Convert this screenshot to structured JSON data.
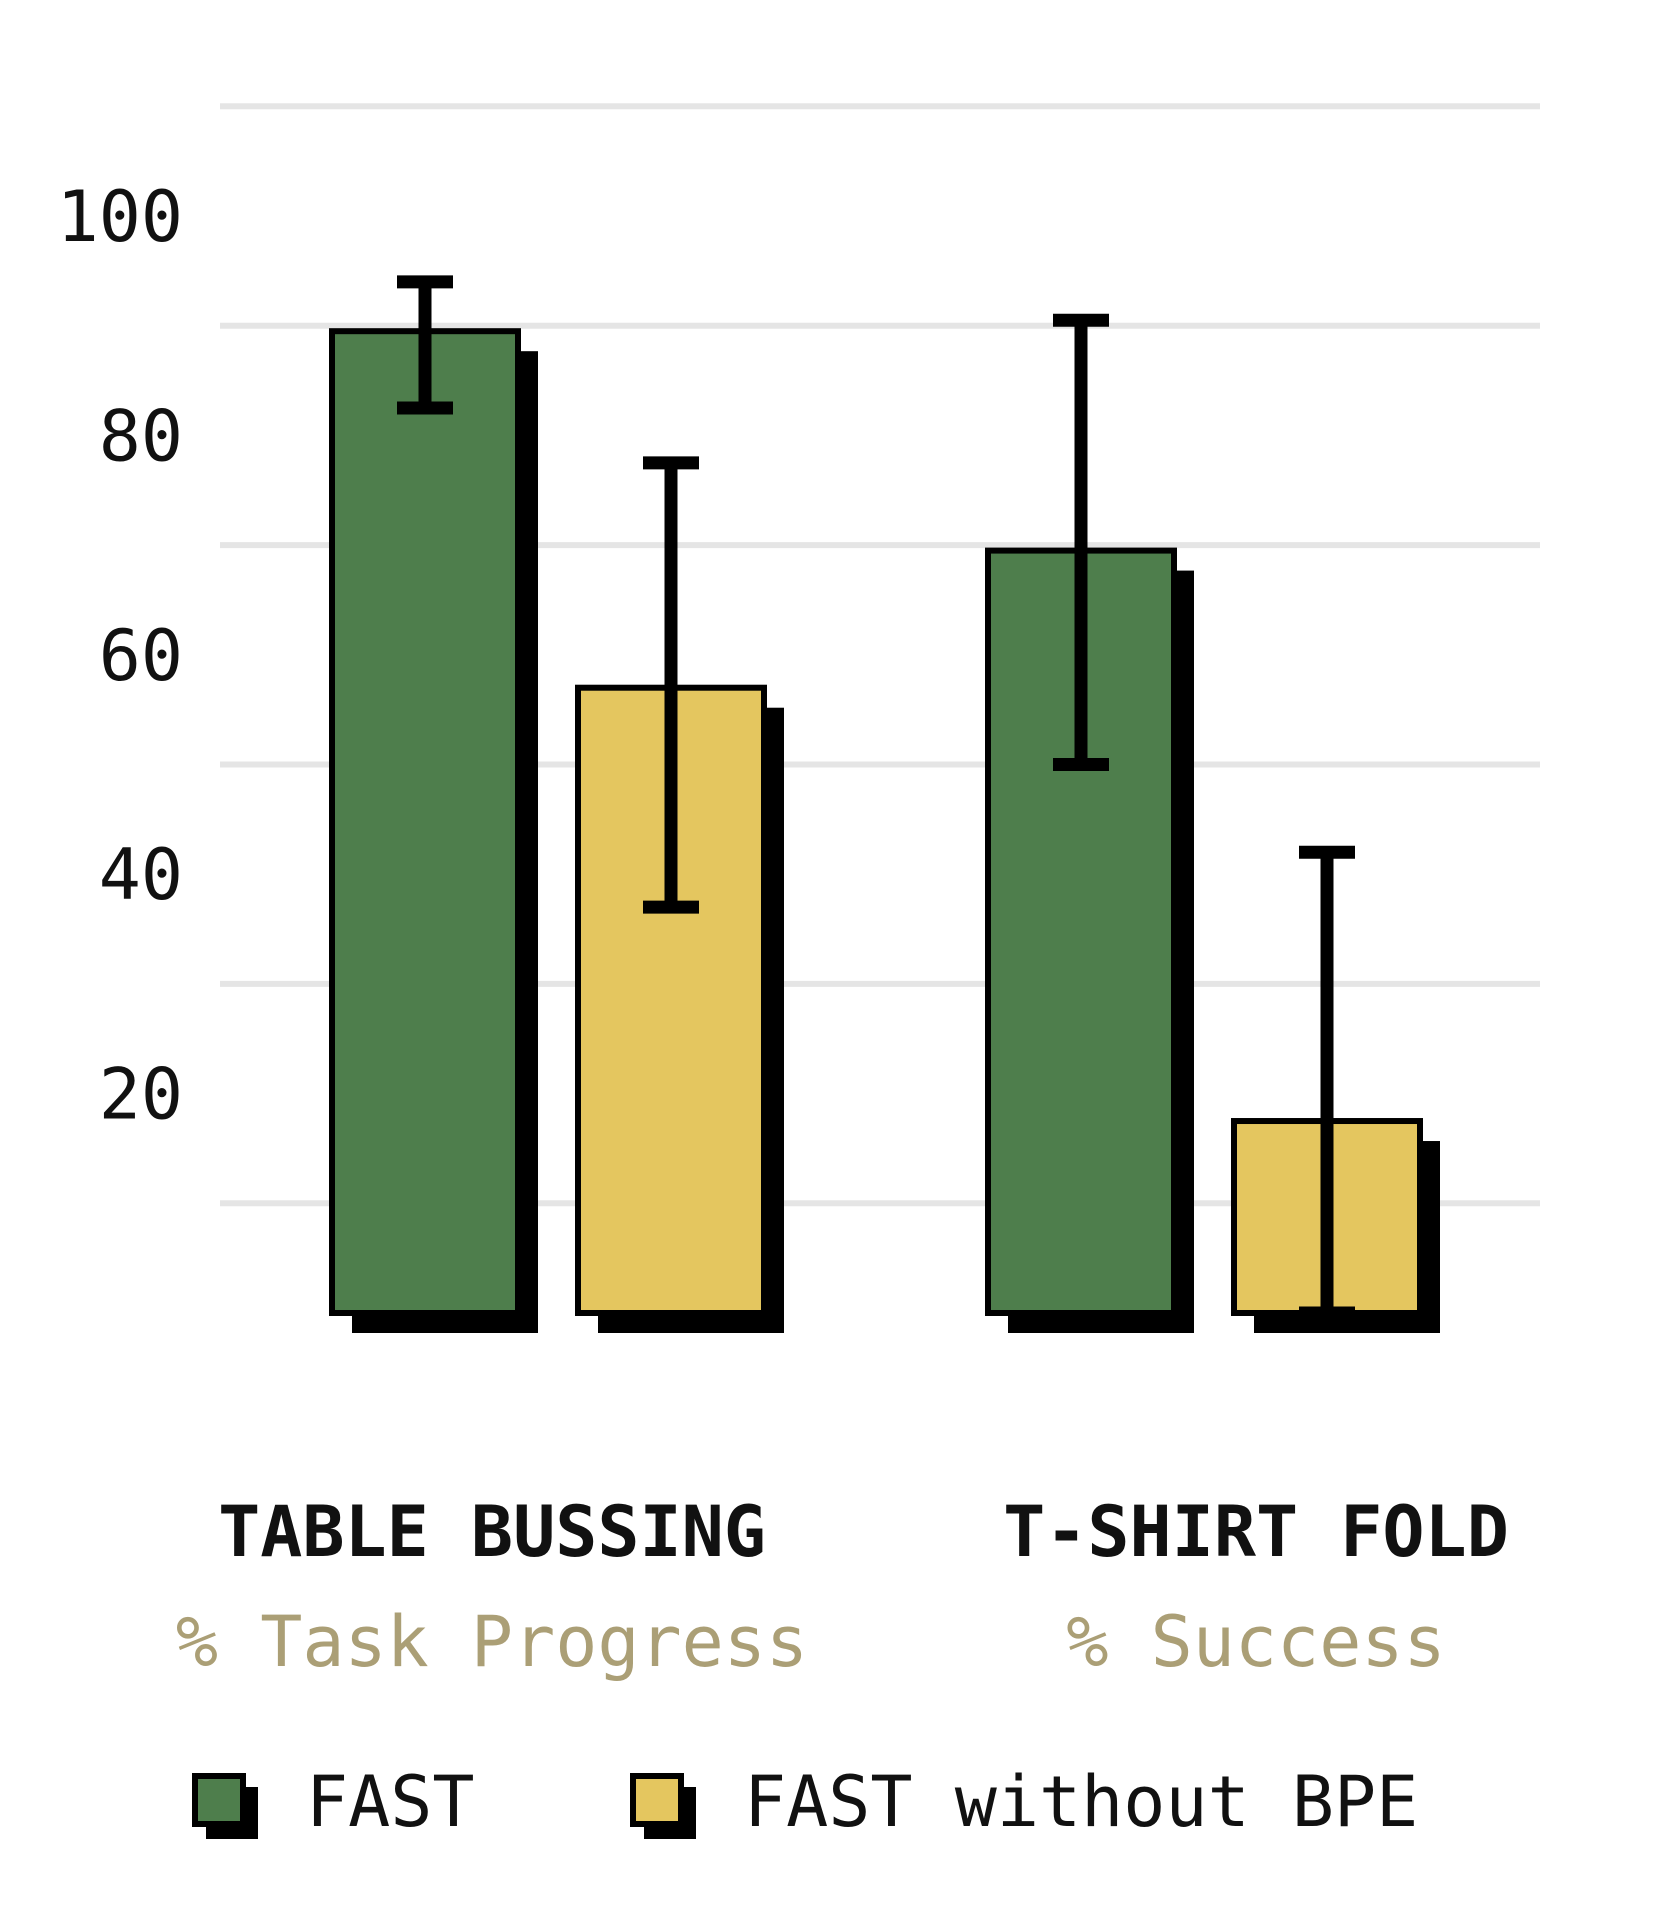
{
  "chart_data": {
    "type": "bar",
    "categories": [
      "TABLE BUSSING",
      "T-SHIRT FOLD"
    ],
    "category_subtitles": [
      "% Task Progress",
      "% Success"
    ],
    "series": [
      {
        "name": "FAST",
        "color": "#4e7e4c",
        "values": [
          89.5,
          69.5
        ],
        "error_low": [
          82.5,
          50
        ],
        "error_high": [
          94,
          90.5
        ]
      },
      {
        "name": "FAST without BPE",
        "color": "#e4c65f",
        "values": [
          57,
          17.5
        ],
        "error_low": [
          37,
          0
        ],
        "error_high": [
          77.5,
          42
        ]
      }
    ],
    "yticks": [
      "20",
      "40",
      "60",
      "80",
      "100"
    ],
    "ylim": [
      0,
      115
    ],
    "grid": true,
    "legend": "bottom"
  }
}
